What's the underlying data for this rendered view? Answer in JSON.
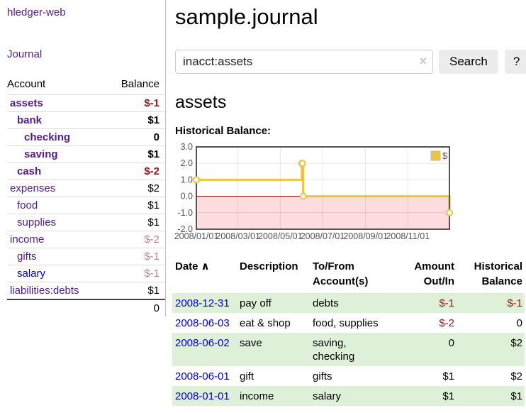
{
  "colors": {
    "link_purple": "#551a8b",
    "link_blue": "#0000cc",
    "negative_strong": "#9d1414",
    "negative_muted": "#c48383",
    "row_green": "#dff0d8",
    "chart_line": "#edc240",
    "chart_negative_fill": "#fcdcdc",
    "chart_zero_line": "#8b0000",
    "chart_border": "#545454"
  },
  "sidebar": {
    "app_title": "hledger-web",
    "nav_journal": "Journal",
    "table_headers": {
      "account": "Account",
      "balance": "Balance"
    },
    "accounts": [
      {
        "name": "assets",
        "depth": 1,
        "bold": true,
        "balance": "$-1",
        "neg": "strong"
      },
      {
        "name": "bank",
        "depth": 2,
        "bold": true,
        "balance": "$1"
      },
      {
        "name": "checking",
        "depth": 3,
        "bold": true,
        "balance": "0"
      },
      {
        "name": "saving",
        "depth": 3,
        "bold": true,
        "balance": "$1"
      },
      {
        "name": "cash",
        "depth": 2,
        "bold": true,
        "balance": "$-2",
        "neg": "strong"
      },
      {
        "name": "expenses",
        "depth": 1,
        "balance": "$2"
      },
      {
        "name": "food",
        "depth": 2,
        "balance": "$1"
      },
      {
        "name": "supplies",
        "depth": 2,
        "balance": "$1"
      },
      {
        "name": "income",
        "depth": 1,
        "balance": "$-2",
        "neg": "muted"
      },
      {
        "name": "gifts",
        "depth": 2,
        "balance": "$-1",
        "neg": "muted"
      },
      {
        "name": "salary",
        "depth": 2,
        "balance": "$-1",
        "neg": "muted",
        "link_color": "blue"
      },
      {
        "name": "liabilities:debts",
        "depth": 1,
        "balance": "$1"
      }
    ],
    "total": "0"
  },
  "main": {
    "title": "sample.journal",
    "search": {
      "value": "inacct:assets",
      "clear_icon": "×",
      "button_label": "Search",
      "help_label": "?"
    },
    "account_heading": "assets"
  },
  "chart_data": {
    "type": "line",
    "step": true,
    "title": "Historical Balance:",
    "series": [
      {
        "name": "$",
        "points": [
          [
            "2008-01-01",
            1
          ],
          [
            "2008-06-01",
            2
          ],
          [
            "2008-06-02",
            2
          ],
          [
            "2008-06-03",
            0
          ],
          [
            "2008-12-31",
            -1
          ]
        ]
      }
    ],
    "x_start": "2008-01-01",
    "x_end": "2008-12-31",
    "x_ticks": [
      "2008/01/01",
      "2008/03/01",
      "2008/05/01",
      "2008/07/01",
      "2008/09/01",
      "2008/11/01"
    ],
    "y_ticks": [
      3,
      2,
      1,
      0,
      -1,
      -2
    ],
    "ylim": [
      -2,
      3
    ],
    "grid": true,
    "legend_position": "top-right",
    "negative_region_shaded": true
  },
  "register": {
    "columns": [
      {
        "key": "date",
        "label": "Date",
        "sort_icon": "∧",
        "align": "left"
      },
      {
        "key": "description",
        "label": "Description",
        "align": "left"
      },
      {
        "key": "account",
        "label": "To/From Account(s)",
        "align": "left"
      },
      {
        "key": "amount",
        "label": "Amount Out/In",
        "align": "right"
      },
      {
        "key": "balance",
        "label": "Historical Balance",
        "align": "right"
      }
    ],
    "rows": [
      {
        "date": "2008-12-31",
        "description": "pay off",
        "account": "debts",
        "amount": "$-1",
        "amount_neg": true,
        "balance": "$-1",
        "balance_neg": true
      },
      {
        "date": "2008-06-03",
        "description": "eat & shop",
        "account": "food, supplies",
        "amount": "$-2",
        "amount_neg": true,
        "balance": "0",
        "balance_neg": false
      },
      {
        "date": "2008-06-02",
        "description": "save",
        "account": "saving, checking",
        "amount": "0",
        "amount_neg": false,
        "balance": "$2",
        "balance_neg": false
      },
      {
        "date": "2008-06-01",
        "description": "gift",
        "account": "gifts",
        "amount": "$1",
        "amount_neg": false,
        "balance": "$2",
        "balance_neg": false
      },
      {
        "date": "2008-01-01",
        "description": "income",
        "account": "salary",
        "amount": "$1",
        "amount_neg": false,
        "balance": "$1",
        "balance_neg": false
      }
    ]
  }
}
